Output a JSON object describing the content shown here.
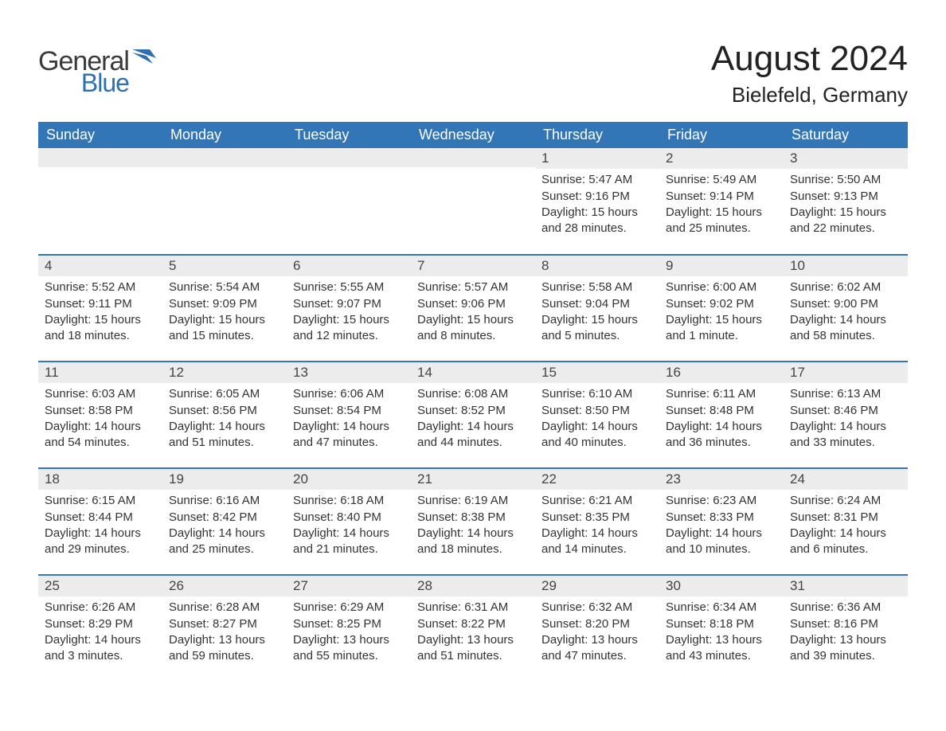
{
  "logo": {
    "general": "General",
    "blue": "Blue",
    "icon_color": "#2e6fb3"
  },
  "title": "August 2024",
  "location": "Bielefeld, Germany",
  "colors": {
    "header_bg": "#3376b8",
    "header_text": "#ffffff",
    "daynum_bg": "#ececec",
    "row_border": "#3376b8",
    "body_text": "#333333",
    "page_bg": "#ffffff"
  },
  "weekdays": [
    "Sunday",
    "Monday",
    "Tuesday",
    "Wednesday",
    "Thursday",
    "Friday",
    "Saturday"
  ],
  "weeks": [
    [
      {
        "day": "",
        "sunrise": "",
        "sunset": "",
        "daylight": ""
      },
      {
        "day": "",
        "sunrise": "",
        "sunset": "",
        "daylight": ""
      },
      {
        "day": "",
        "sunrise": "",
        "sunset": "",
        "daylight": ""
      },
      {
        "day": "",
        "sunrise": "",
        "sunset": "",
        "daylight": ""
      },
      {
        "day": "1",
        "sunrise": "Sunrise: 5:47 AM",
        "sunset": "Sunset: 9:16 PM",
        "daylight": "Daylight: 15 hours and 28 minutes."
      },
      {
        "day": "2",
        "sunrise": "Sunrise: 5:49 AM",
        "sunset": "Sunset: 9:14 PM",
        "daylight": "Daylight: 15 hours and 25 minutes."
      },
      {
        "day": "3",
        "sunrise": "Sunrise: 5:50 AM",
        "sunset": "Sunset: 9:13 PM",
        "daylight": "Daylight: 15 hours and 22 minutes."
      }
    ],
    [
      {
        "day": "4",
        "sunrise": "Sunrise: 5:52 AM",
        "sunset": "Sunset: 9:11 PM",
        "daylight": "Daylight: 15 hours and 18 minutes."
      },
      {
        "day": "5",
        "sunrise": "Sunrise: 5:54 AM",
        "sunset": "Sunset: 9:09 PM",
        "daylight": "Daylight: 15 hours and 15 minutes."
      },
      {
        "day": "6",
        "sunrise": "Sunrise: 5:55 AM",
        "sunset": "Sunset: 9:07 PM",
        "daylight": "Daylight: 15 hours and 12 minutes."
      },
      {
        "day": "7",
        "sunrise": "Sunrise: 5:57 AM",
        "sunset": "Sunset: 9:06 PM",
        "daylight": "Daylight: 15 hours and 8 minutes."
      },
      {
        "day": "8",
        "sunrise": "Sunrise: 5:58 AM",
        "sunset": "Sunset: 9:04 PM",
        "daylight": "Daylight: 15 hours and 5 minutes."
      },
      {
        "day": "9",
        "sunrise": "Sunrise: 6:00 AM",
        "sunset": "Sunset: 9:02 PM",
        "daylight": "Daylight: 15 hours and 1 minute."
      },
      {
        "day": "10",
        "sunrise": "Sunrise: 6:02 AM",
        "sunset": "Sunset: 9:00 PM",
        "daylight": "Daylight: 14 hours and 58 minutes."
      }
    ],
    [
      {
        "day": "11",
        "sunrise": "Sunrise: 6:03 AM",
        "sunset": "Sunset: 8:58 PM",
        "daylight": "Daylight: 14 hours and 54 minutes."
      },
      {
        "day": "12",
        "sunrise": "Sunrise: 6:05 AM",
        "sunset": "Sunset: 8:56 PM",
        "daylight": "Daylight: 14 hours and 51 minutes."
      },
      {
        "day": "13",
        "sunrise": "Sunrise: 6:06 AM",
        "sunset": "Sunset: 8:54 PM",
        "daylight": "Daylight: 14 hours and 47 minutes."
      },
      {
        "day": "14",
        "sunrise": "Sunrise: 6:08 AM",
        "sunset": "Sunset: 8:52 PM",
        "daylight": "Daylight: 14 hours and 44 minutes."
      },
      {
        "day": "15",
        "sunrise": "Sunrise: 6:10 AM",
        "sunset": "Sunset: 8:50 PM",
        "daylight": "Daylight: 14 hours and 40 minutes."
      },
      {
        "day": "16",
        "sunrise": "Sunrise: 6:11 AM",
        "sunset": "Sunset: 8:48 PM",
        "daylight": "Daylight: 14 hours and 36 minutes."
      },
      {
        "day": "17",
        "sunrise": "Sunrise: 6:13 AM",
        "sunset": "Sunset: 8:46 PM",
        "daylight": "Daylight: 14 hours and 33 minutes."
      }
    ],
    [
      {
        "day": "18",
        "sunrise": "Sunrise: 6:15 AM",
        "sunset": "Sunset: 8:44 PM",
        "daylight": "Daylight: 14 hours and 29 minutes."
      },
      {
        "day": "19",
        "sunrise": "Sunrise: 6:16 AM",
        "sunset": "Sunset: 8:42 PM",
        "daylight": "Daylight: 14 hours and 25 minutes."
      },
      {
        "day": "20",
        "sunrise": "Sunrise: 6:18 AM",
        "sunset": "Sunset: 8:40 PM",
        "daylight": "Daylight: 14 hours and 21 minutes."
      },
      {
        "day": "21",
        "sunrise": "Sunrise: 6:19 AM",
        "sunset": "Sunset: 8:38 PM",
        "daylight": "Daylight: 14 hours and 18 minutes."
      },
      {
        "day": "22",
        "sunrise": "Sunrise: 6:21 AM",
        "sunset": "Sunset: 8:35 PM",
        "daylight": "Daylight: 14 hours and 14 minutes."
      },
      {
        "day": "23",
        "sunrise": "Sunrise: 6:23 AM",
        "sunset": "Sunset: 8:33 PM",
        "daylight": "Daylight: 14 hours and 10 minutes."
      },
      {
        "day": "24",
        "sunrise": "Sunrise: 6:24 AM",
        "sunset": "Sunset: 8:31 PM",
        "daylight": "Daylight: 14 hours and 6 minutes."
      }
    ],
    [
      {
        "day": "25",
        "sunrise": "Sunrise: 6:26 AM",
        "sunset": "Sunset: 8:29 PM",
        "daylight": "Daylight: 14 hours and 3 minutes."
      },
      {
        "day": "26",
        "sunrise": "Sunrise: 6:28 AM",
        "sunset": "Sunset: 8:27 PM",
        "daylight": "Daylight: 13 hours and 59 minutes."
      },
      {
        "day": "27",
        "sunrise": "Sunrise: 6:29 AM",
        "sunset": "Sunset: 8:25 PM",
        "daylight": "Daylight: 13 hours and 55 minutes."
      },
      {
        "day": "28",
        "sunrise": "Sunrise: 6:31 AM",
        "sunset": "Sunset: 8:22 PM",
        "daylight": "Daylight: 13 hours and 51 minutes."
      },
      {
        "day": "29",
        "sunrise": "Sunrise: 6:32 AM",
        "sunset": "Sunset: 8:20 PM",
        "daylight": "Daylight: 13 hours and 47 minutes."
      },
      {
        "day": "30",
        "sunrise": "Sunrise: 6:34 AM",
        "sunset": "Sunset: 8:18 PM",
        "daylight": "Daylight: 13 hours and 43 minutes."
      },
      {
        "day": "31",
        "sunrise": "Sunrise: 6:36 AM",
        "sunset": "Sunset: 8:16 PM",
        "daylight": "Daylight: 13 hours and 39 minutes."
      }
    ]
  ]
}
